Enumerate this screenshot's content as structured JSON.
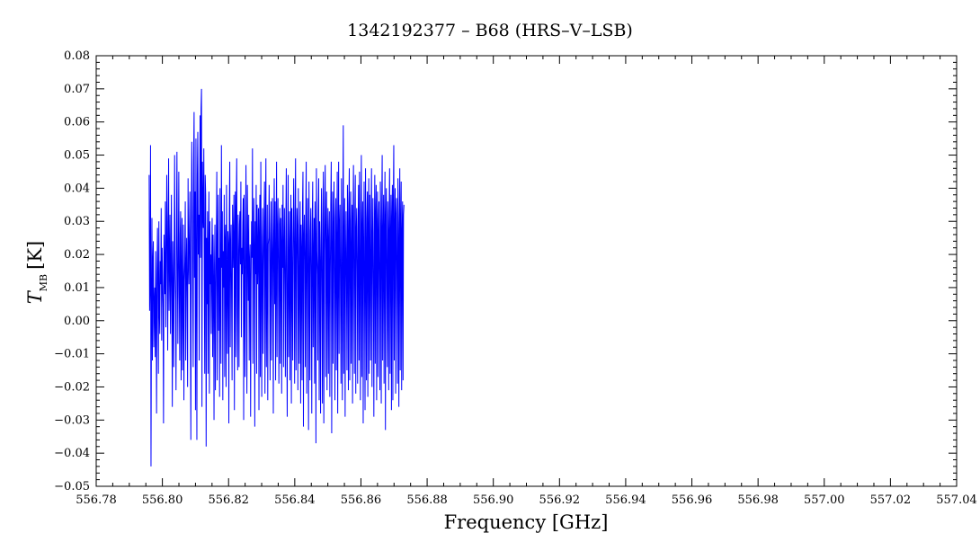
{
  "chart_data": {
    "type": "line",
    "title": "1342192377 – B68 (HRS–V–LSB)",
    "xlabel": "Frequency [GHz]",
    "ylabel_main": "T",
    "ylabel_sub": "MB",
    "ylabel_unit": "[K]",
    "xlim": [
      556.78,
      557.04
    ],
    "ylim": [
      -0.05,
      0.08
    ],
    "x_ticks": [
      "556.78",
      "556.80",
      "556.82",
      "556.84",
      "556.86",
      "556.88",
      "556.90",
      "556.92",
      "556.94",
      "556.96",
      "556.98",
      "557.00",
      "557.02",
      "557.04"
    ],
    "y_ticks": [
      "−0.05",
      "−0.04",
      "−0.03",
      "−0.02",
      "−0.01",
      "0.00",
      "0.01",
      "0.02",
      "0.03",
      "0.04",
      "0.05",
      "0.06",
      "0.07",
      "0.08"
    ],
    "grid": false,
    "line_color": "#0000ff",
    "series": [
      {
        "x_start": 556.796,
        "x_step": 0.00014,
        "values": [
          0.044,
          0.003,
          0.012,
          0.053,
          -0.044,
          0.002,
          0.031,
          -0.012,
          0.018,
          0.024,
          -0.008,
          0.005,
          0.01,
          -0.011,
          0.021,
          0.006,
          -0.028,
          0.014,
          0.028,
          0.009,
          -0.016,
          0.03,
          0.003,
          -0.004,
          0.018,
          0.011,
          0.034,
          -0.006,
          0.022,
          0.012,
          0.004,
          -0.031,
          0.026,
          0.015,
          0.008,
          0.036,
          -0.002,
          0.016,
          0.044,
          0.03,
          -0.009,
          0.021,
          0.049,
          0.003,
          0.018,
          0.032,
          -0.004,
          0.013,
          0.038,
          0.008,
          -0.026,
          0.024,
          0.011,
          -0.014,
          0.019,
          0.05,
          0.014,
          0.006,
          -0.021,
          0.029,
          0.051,
          0.015,
          -0.007,
          0.02,
          0.045,
          0.009,
          -0.012,
          0.026,
          0.033,
          -0.018,
          0.014,
          0.031,
          -0.015,
          0.005,
          0.029,
          -0.024,
          0.012,
          0.018,
          0.036,
          -0.012,
          0.016,
          0.025,
          0.007,
          -0.02,
          0.043,
          0.019,
          0.011,
          0.028,
          0.039,
          0.002,
          -0.036,
          0.027,
          0.054,
          0.034,
          0.008,
          -0.014,
          0.048,
          0.063,
          0.013,
          0.039,
          -0.027,
          0.055,
          0.017,
          -0.036,
          0.044,
          0.057,
          0.02,
          0.032,
          -0.012,
          0.036,
          0.062,
          0.019,
          0.064,
          0.07,
          -0.026,
          0.048,
          0.034,
          0.028,
          0.052,
          0.013,
          -0.016,
          0.044,
          0.038,
          -0.038,
          0.025,
          0.005,
          0.033,
          -0.016,
          0.021,
          0.039,
          -0.022,
          0.03,
          0.011,
          0.02,
          -0.004,
          0.018,
          0.031,
          -0.011,
          0.026,
          0.013,
          -0.03,
          0.017,
          0.029,
          -0.021,
          0.005,
          0.026,
          0.045,
          -0.018,
          0.022,
          0.038,
          -0.003,
          0.019,
          -0.023,
          0.04,
          0.012,
          -0.013,
          0.053,
          0.016,
          0.033,
          -0.024,
          0.021,
          0.01,
          0.038,
          -0.017,
          0.024,
          0.029,
          -0.02,
          0.041,
          0.014,
          -0.01,
          0.027,
          0.023,
          -0.031,
          0.032,
          0.048,
          -0.008,
          0.022,
          0.029,
          0.006,
          -0.018,
          0.035,
          0.016,
          0.025,
          0.038,
          -0.027,
          0.025,
          0.039,
          -0.011,
          0.034,
          0.049,
          0.003,
          -0.015,
          0.032,
          0.02,
          -0.014,
          0.029,
          0.033,
          0.017,
          0.042,
          -0.005,
          0.022,
          0.014,
          0.029,
          0.037,
          -0.03,
          0.038,
          0.011,
          -0.017,
          0.027,
          0.047,
          0.009,
          -0.022,
          0.041,
          0.024,
          0.006,
          0.032,
          -0.012,
          0.018,
          0.023,
          -0.029,
          0.012,
          0.03,
          0.019,
          0.052,
          -0.013,
          0.014,
          0.037,
          0.022,
          -0.032,
          0.03,
          0.014,
          0.041,
          -0.016,
          0.035,
          0.011,
          0.021,
          0.034,
          -0.027,
          0.026,
          0.038,
          -0.017,
          0.048,
          0.013,
          -0.023,
          0.025,
          0.034,
          -0.01,
          0.015,
          0.031,
          0.042,
          -0.022,
          0.027,
          0.049,
          -0.014,
          0.013,
          0.035,
          -0.024,
          0.023,
          0.025,
          0.041,
          0.016,
          -0.018,
          0.024,
          0.036,
          -0.012,
          0.014,
          0.037,
          0.021,
          -0.028,
          0.027,
          0.043,
          0.005,
          0.036,
          -0.018,
          0.018,
          0.048,
          -0.011,
          0.026,
          0.037,
          0.014,
          -0.019,
          0.029,
          0.034,
          -0.013,
          0.031,
          0.023,
          -0.022,
          0.035,
          0.016,
          0.041,
          -0.014,
          0.021,
          0.034,
          0.011,
          -0.017,
          0.027,
          0.046,
          0.004,
          -0.029,
          0.022,
          0.044,
          -0.011,
          0.015,
          0.033,
          -0.018,
          0.023,
          0.038,
          -0.025,
          0.034,
          0.014,
          -0.012,
          0.026,
          0.043,
          0.022,
          -0.019,
          0.031,
          0.049,
          -0.015,
          0.017,
          0.034,
          0.028,
          -0.021,
          0.04,
          0.012,
          -0.013,
          0.024,
          0.036,
          -0.025,
          0.029,
          0.021,
          -0.018,
          0.034,
          0.045,
          -0.032,
          0.025,
          0.032,
          0.018,
          -0.014,
          0.031,
          0.048,
          -0.022,
          0.022,
          0.037,
          0.009,
          -0.033,
          0.042,
          0.015,
          -0.018,
          0.027,
          0.034,
          0.013,
          -0.028,
          0.029,
          0.042,
          -0.008,
          0.018,
          0.031,
          -0.019,
          0.036,
          0.024,
          -0.037,
          0.046,
          0.021,
          0.014,
          -0.012,
          0.033,
          0.043,
          -0.024,
          0.03,
          0.017,
          -0.028,
          0.025,
          0.04,
          0.008,
          -0.025,
          0.031,
          0.045,
          -0.031,
          0.021,
          0.036,
          0.047,
          -0.017,
          0.026,
          0.039,
          -0.021,
          0.022,
          0.034,
          -0.016,
          0.024,
          0.033,
          -0.023,
          0.014,
          0.035,
          0.048,
          -0.034,
          0.019,
          0.039,
          -0.013,
          0.028,
          0.042,
          0.008,
          -0.024,
          0.031,
          0.037,
          -0.015,
          0.023,
          0.045,
          -0.028,
          0.021,
          0.048,
          -0.01,
          0.029,
          0.035,
          0.006,
          -0.019,
          0.043,
          0.012,
          -0.024,
          0.032,
          0.059,
          -0.016,
          0.024,
          0.037,
          -0.029,
          0.018,
          0.033,
          0.011,
          -0.015,
          0.041,
          0.026,
          -0.021,
          0.035,
          0.046,
          -0.018,
          0.028,
          0.039,
          -0.013,
          0.02,
          0.035,
          -0.025,
          0.031,
          0.047,
          0.009,
          -0.016,
          0.033,
          0.044,
          -0.022,
          0.027,
          0.034,
          0.015,
          -0.019,
          0.028,
          0.041,
          -0.012,
          0.045,
          0.017,
          -0.024,
          0.032,
          0.05,
          -0.017,
          0.027,
          0.036,
          -0.031,
          0.023,
          0.042,
          0.006,
          -0.027,
          0.046,
          0.022,
          -0.018,
          0.031,
          0.039,
          -0.023,
          0.028,
          0.043,
          -0.016,
          0.038,
          0.017,
          -0.012,
          0.033,
          0.046,
          -0.02,
          0.024,
          0.037,
          0.011,
          -0.029,
          0.026,
          0.044,
          -0.013,
          0.032,
          0.041,
          -0.024,
          0.029,
          0.039,
          -0.017,
          0.026,
          0.036,
          0.008,
          -0.021,
          0.042,
          0.028,
          -0.025,
          0.034,
          0.05,
          -0.012,
          0.025,
          0.038,
          -0.019,
          0.027,
          0.045,
          -0.033,
          0.031,
          0.04,
          0.009,
          -0.014,
          0.036,
          0.027,
          -0.021,
          0.033,
          0.046,
          -0.016,
          0.025,
          0.038,
          -0.027,
          0.031,
          0.041,
          -0.024,
          0.035,
          0.053,
          -0.012,
          0.027,
          0.04,
          -0.022,
          0.032,
          0.037,
          0.011,
          -0.019,
          0.043,
          0.025,
          -0.026,
          0.029,
          0.046,
          -0.015,
          0.03,
          0.042,
          -0.021,
          0.026,
          0.036,
          -0.018,
          0.032,
          0.035
        ]
      }
    ]
  }
}
